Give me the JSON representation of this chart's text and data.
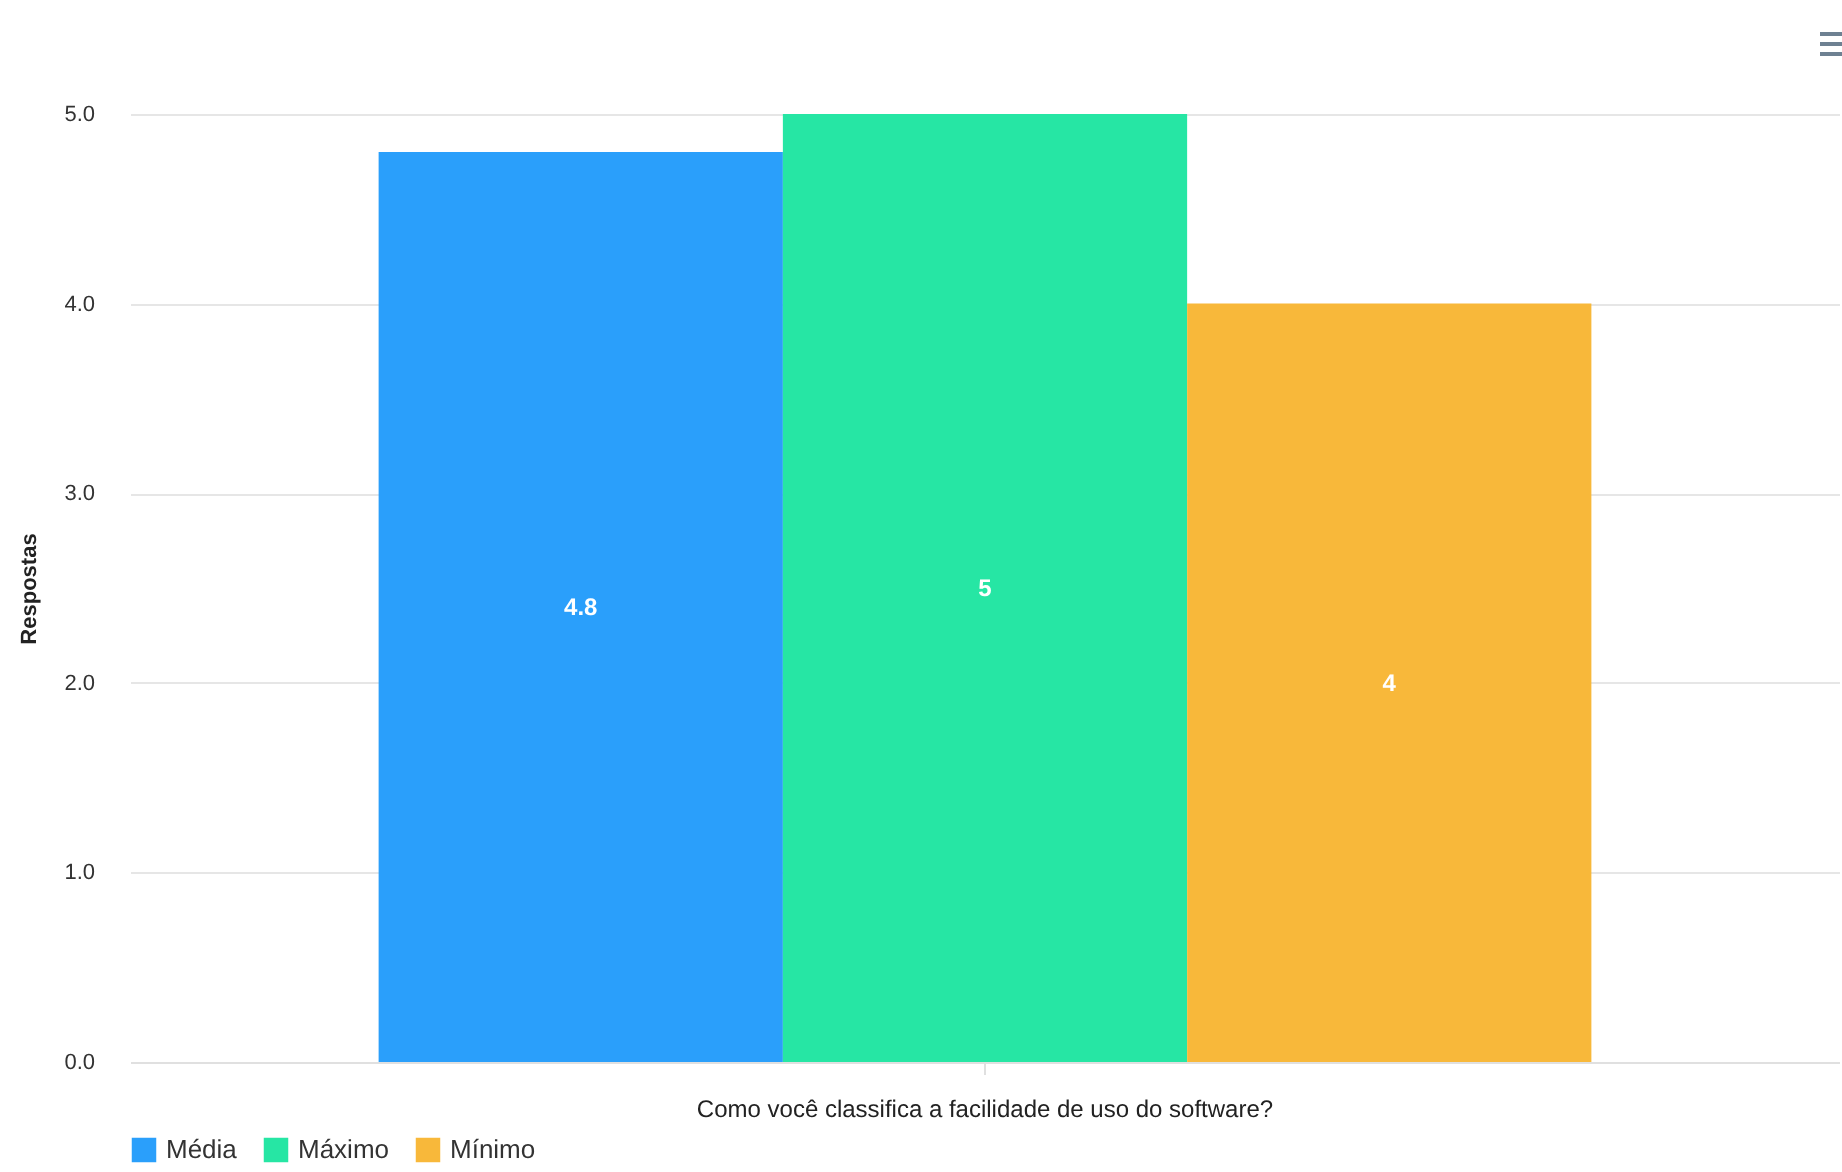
{
  "chart_data": {
    "type": "bar",
    "ylabel": "Respostas",
    "categories": [
      "Como você classifica a facilidade de uso do software?"
    ],
    "series": [
      {
        "name": "Média",
        "color": "#2a9ffb",
        "values": [
          4.8
        ]
      },
      {
        "name": "Máximo",
        "color": "#26e6a4",
        "values": [
          5
        ]
      },
      {
        "name": "Mínimo",
        "color": "#f8b83a",
        "values": [
          4
        ]
      }
    ],
    "ylim": [
      0,
      5
    ],
    "yticks": [
      {
        "value": 0,
        "label": "0.0"
      },
      {
        "value": 1,
        "label": "1.0"
      },
      {
        "value": 2,
        "label": "2.0"
      },
      {
        "value": 3,
        "label": "3.0"
      },
      {
        "value": 4,
        "label": "4.0"
      },
      {
        "value": 5,
        "label": "5.0"
      }
    ],
    "grid": "y",
    "legend": "bottom",
    "data_labels": true
  }
}
